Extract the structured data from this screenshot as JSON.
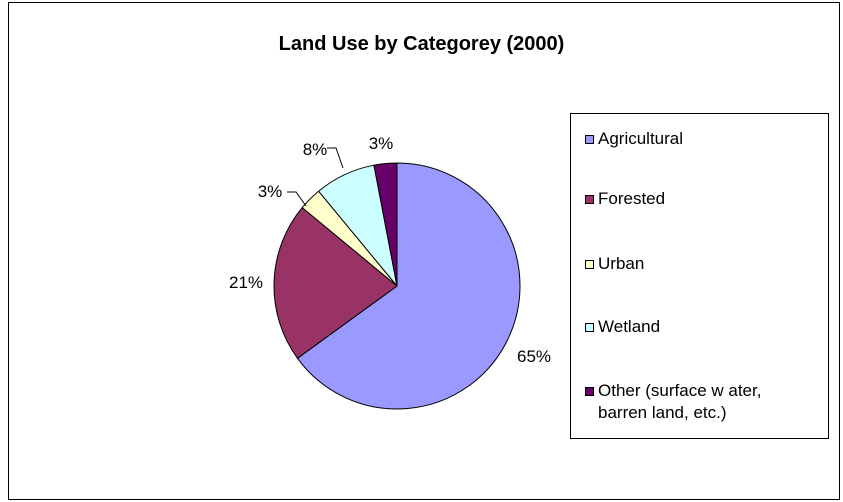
{
  "chart_data": {
    "type": "pie",
    "title": "Land Use by Categorey (2000)",
    "slices": [
      {
        "label": "Agricultural",
        "value": 65,
        "display": "65%",
        "color": "#9999ff"
      },
      {
        "label": "Forested",
        "value": 21,
        "display": "21%",
        "color": "#993366"
      },
      {
        "label": "Urban",
        "value": 3,
        "display": "3%",
        "color": "#ffffcc"
      },
      {
        "label": "Wetland",
        "value": 8,
        "display": "8%",
        "color": "#ccffff"
      },
      {
        "label": "Other (surface w ater,\nbarren land, etc.)",
        "value": 3,
        "display": "3%",
        "color": "#660066"
      }
    ],
    "legend_position": "right"
  }
}
